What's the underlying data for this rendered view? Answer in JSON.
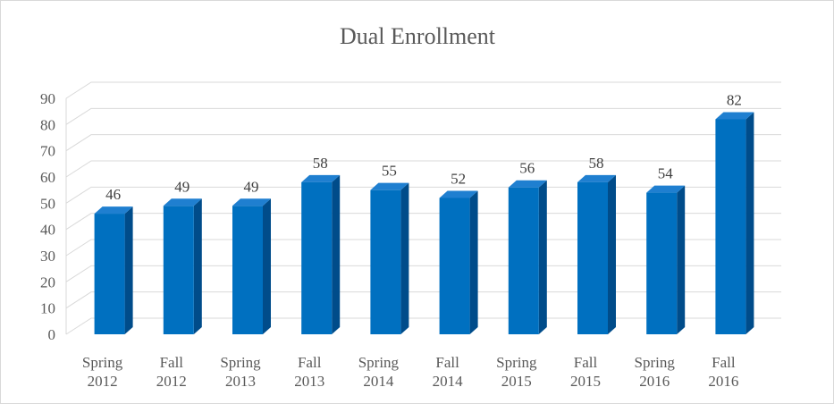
{
  "chart_data": {
    "type": "bar",
    "title": "Dual Enrollment",
    "categories": [
      [
        "Spring",
        "2012"
      ],
      [
        "Fall",
        "2012"
      ],
      [
        "Spring",
        "2013"
      ],
      [
        "Fall",
        "2013"
      ],
      [
        "Spring",
        "2014"
      ],
      [
        "Fall",
        "2014"
      ],
      [
        "Spring",
        "2015"
      ],
      [
        "Fall",
        "2015"
      ],
      [
        "Spring",
        "2016"
      ],
      [
        "Fall",
        "2016"
      ]
    ],
    "values": [
      46,
      49,
      49,
      58,
      55,
      52,
      56,
      58,
      54,
      82
    ],
    "ylim": [
      0,
      90
    ],
    "yticks": [
      0,
      10,
      20,
      30,
      40,
      50,
      60,
      70,
      80,
      90
    ],
    "grid": true,
    "data_labels": true,
    "style": "3d-column",
    "colors": {
      "bar_front": "#0070C0",
      "bar_side": "#004C8A",
      "bar_top": "#1F7FD0",
      "grid": "#d9d9d9",
      "text": "#595959"
    }
  }
}
